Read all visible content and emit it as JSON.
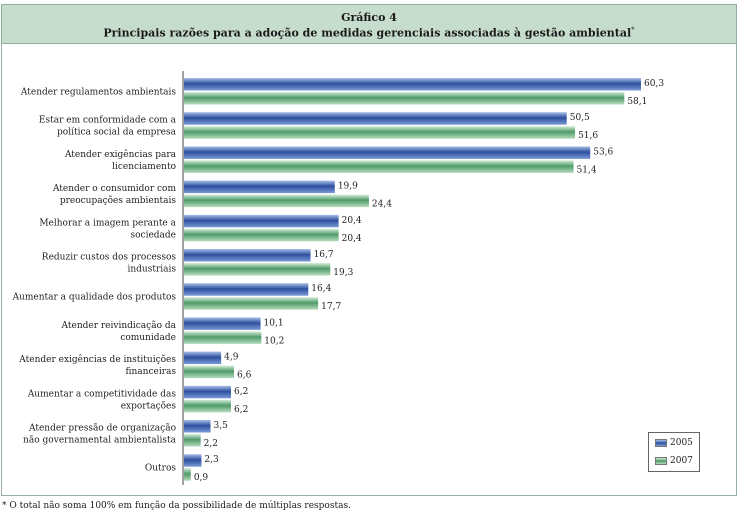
{
  "title": {
    "line1": "Gráfico 4",
    "line2": "Principais razões para a adoção de medidas gerenciais associadas à gestão ambiental",
    "mark": "*"
  },
  "footnote": "* O total não soma 100% em função da possibilidade de múltiplas respostas.",
  "legend": [
    {
      "label": "2005"
    },
    {
      "label": "2007"
    }
  ],
  "colors": {
    "series_2005_top": "#7a9ad6",
    "series_2005_mid": "#2e4f9e",
    "series_2007_top": "#b6dcbf",
    "series_2007_mid": "#4f9a68",
    "title_band": "#c6dccd"
  },
  "chart_data": {
    "type": "bar",
    "orientation": "horizontal",
    "categories": [
      [
        "Atender regulamentos ambientais"
      ],
      [
        "Estar em conformidade com a",
        "política social da empresa"
      ],
      [
        "Atender exigências para",
        "licenciamento"
      ],
      [
        "Atender o consumidor com",
        "preocupações ambientais"
      ],
      [
        "Melhorar a imagem perante a",
        "sociedade"
      ],
      [
        "Reduzir custos dos processos",
        "industriais"
      ],
      [
        "Aumentar a qualidade dos produtos"
      ],
      [
        "Atender reivindicação da",
        "comunidade"
      ],
      [
        "Atender exigências de instituições",
        "financeiras"
      ],
      [
        "Aumentar a competitividade das",
        "exportações"
      ],
      [
        "Atender pressão de organização",
        "não governamental ambientalista"
      ],
      [
        "Outros"
      ]
    ],
    "series": [
      {
        "name": "2005",
        "values": [
          60.3,
          50.5,
          53.6,
          19.9,
          20.4,
          16.7,
          16.4,
          10.1,
          4.9,
          6.2,
          3.5,
          2.3
        ],
        "labels": [
          "60,3",
          "50,5",
          "53,6",
          "19,9",
          "20,4",
          "16,7",
          "16,4",
          "10,1",
          "4,9",
          "6,2",
          "3,5",
          "2,3"
        ]
      },
      {
        "name": "2007",
        "values": [
          58.1,
          51.6,
          51.4,
          24.4,
          20.4,
          19.3,
          17.7,
          10.2,
          6.6,
          6.2,
          2.2,
          0.9
        ],
        "labels": [
          "58,1",
          "51,6",
          "51,4",
          "24,4",
          "20,4",
          "19,3",
          "17,7",
          "10,2",
          "6,6",
          "6,2",
          "2,2",
          "0,9"
        ]
      }
    ],
    "xlim": [
      0,
      60.3
    ],
    "grid": false,
    "legend_position": "bottom-right"
  }
}
